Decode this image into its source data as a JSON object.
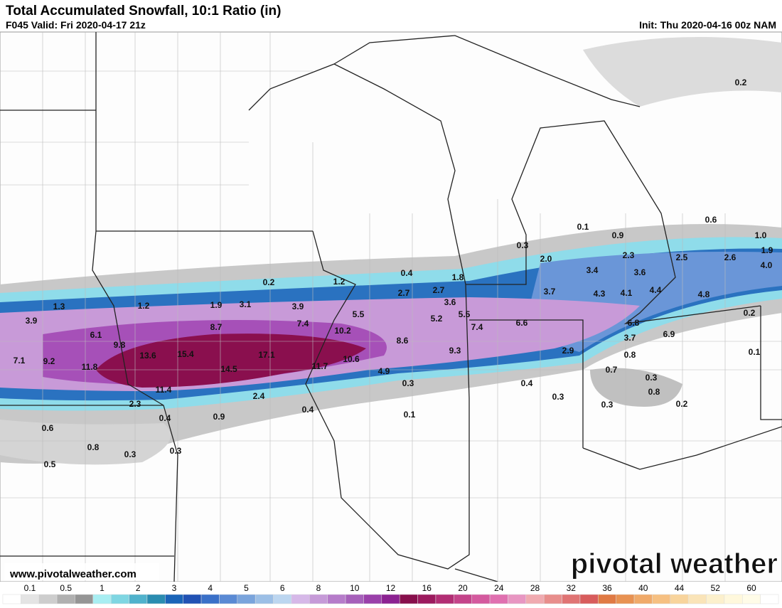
{
  "header": {
    "title": "Total Accumulated Snowfall, 10:1 Ratio (in)",
    "valid": "F045 Valid: Fri 2020-04-17 21z",
    "init": "Init: Thu 2020-04-16 00z NAM"
  },
  "map": {
    "labels": [
      "0.2",
      "0.6",
      "0.1",
      "0.9",
      "1.0",
      "0.3",
      "1.9",
      "2.0",
      "2.3",
      "2.5",
      "2.6",
      "4.0",
      "0.4",
      "3.4",
      "3.6",
      "1.8",
      "0.2",
      "1.2",
      "2.7",
      "2.7",
      "3.7",
      "4.3",
      "4.1",
      "4.4",
      "4.8",
      "3.6",
      "1.3",
      "1.2",
      "1.9",
      "3.1",
      "3.9",
      "5.5",
      "5.5",
      "0.2",
      "5.2",
      "3.9",
      "7.4",
      "8.7",
      "7.4",
      "6.6",
      "6.8",
      "10.2",
      "6.1",
      "3.7",
      "6.9",
      "8.6",
      "9.8",
      "9.3",
      "2.9",
      "0.8",
      "0.1",
      "7.1",
      "9.2",
      "13.6",
      "15.4",
      "17.1",
      "10.6",
      "11.8",
      "14.5",
      "11.7",
      "0.7",
      "4.9",
      "0.3",
      "0.3",
      "0.4",
      "11.4",
      "0.8",
      "2.4",
      "0.3",
      "2.3",
      "0.3",
      "0.2",
      "0.4",
      "0.1",
      "0.4",
      "0.9",
      "0.6",
      "0.8",
      "0.3",
      "0.3",
      "0.5"
    ]
  },
  "watermark": {
    "logo": "pivotal weather",
    "url": "www.pivotalweather.com"
  },
  "colorbar": {
    "labels": [
      0.1,
      0.5,
      1,
      2,
      3,
      4,
      5,
      6,
      8,
      10,
      12,
      16,
      20,
      24,
      28,
      32,
      36,
      40,
      44,
      52,
      60
    ],
    "colors": [
      "#ffffff",
      "#e4e4e4",
      "#cdcdcd",
      "#b0b0b0",
      "#959595",
      "#a8eef2",
      "#7fd6e2",
      "#50b2cc",
      "#2a8cb0",
      "#1a64b8",
      "#2152b4",
      "#3a70c8",
      "#5a8ad4",
      "#7aa4dc",
      "#9cbfe6",
      "#bcd6f0",
      "#d6b8e8",
      "#c69ad8",
      "#b67cca",
      "#a660ba",
      "#9a40aa",
      "#8c2292",
      "#880f4c",
      "#9c1a5e",
      "#b22e74",
      "#c4448a",
      "#d45a9e",
      "#e070b0",
      "#e896c2",
      "#f0aab0",
      "#e88e8c",
      "#e07474",
      "#d85c5c",
      "#e07a44",
      "#e89252",
      "#f0aa6a",
      "#f6c082",
      "#f8d49c",
      "#fae4b8",
      "#fcf0cc",
      "#fff8dc",
      "#fffce8",
      "#ffffff"
    ]
  }
}
